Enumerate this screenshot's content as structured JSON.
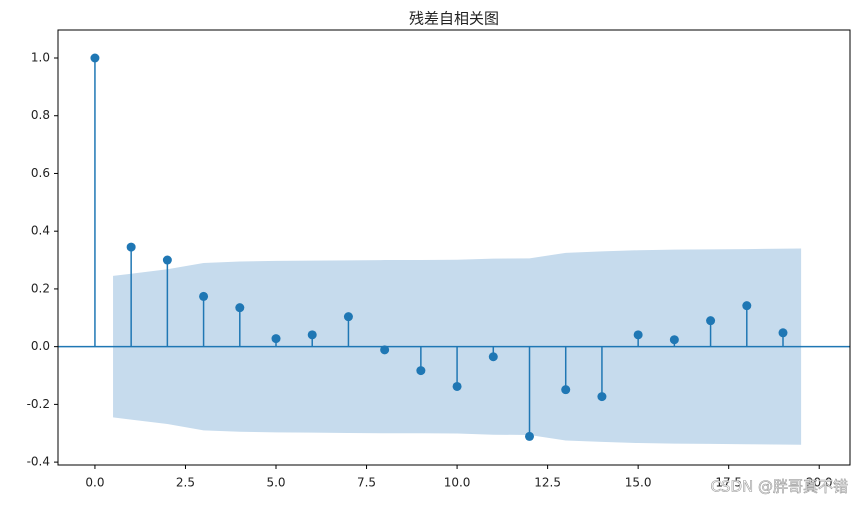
{
  "chart_data": {
    "type": "stem",
    "title": "残差自相关图",
    "x": [
      0,
      1,
      2,
      3,
      4,
      5,
      6,
      7,
      8,
      9,
      10,
      11,
      12,
      13,
      14,
      15,
      16,
      17,
      18,
      19
    ],
    "series": [
      {
        "color": "#1f77b4",
        "values": [
          1.0,
          0.345,
          0.3,
          0.174,
          0.135,
          0.028,
          0.041,
          0.104,
          -0.011,
          -0.083,
          -0.138,
          -0.035,
          -0.311,
          -0.149,
          -0.173,
          0.041,
          0.024,
          0.09,
          0.142,
          0.048
        ]
      }
    ],
    "band": {
      "color": "#c6dbed",
      "x": [
        0.5,
        2,
        3,
        4,
        5,
        6,
        7,
        8,
        9,
        10,
        11,
        12,
        13,
        14,
        15,
        16,
        17,
        18,
        19.5
      ],
      "upper": [
        0.245,
        0.268,
        0.29,
        0.295,
        0.297,
        0.298,
        0.299,
        0.3,
        0.3,
        0.301,
        0.305,
        0.306,
        0.325,
        0.33,
        0.334,
        0.336,
        0.337,
        0.338,
        0.34
      ],
      "lower": [
        -0.245,
        -0.268,
        -0.29,
        -0.295,
        -0.297,
        -0.298,
        -0.299,
        -0.3,
        -0.3,
        -0.301,
        -0.305,
        -0.306,
        -0.325,
        -0.33,
        -0.334,
        -0.336,
        -0.337,
        -0.338,
        -0.34
      ]
    },
    "xlim": [
      -1.02,
      20.85
    ],
    "ylim": [
      -0.41,
      1.097
    ],
    "xticks": [
      {
        "value": 0,
        "label": "0.0"
      },
      2.5,
      {
        "value": 5,
        "label": "5.0"
      },
      7.5,
      {
        "value": 10,
        "label": "10.0"
      },
      12.5,
      {
        "value": 15,
        "label": "15.0"
      },
      17.5,
      {
        "value": 20,
        "label": "20.0"
      }
    ],
    "yticks": [
      -0.4,
      -0.2,
      {
        "value": 0,
        "label": "0.0"
      },
      0.2,
      0.4,
      0.6,
      0.8,
      {
        "value": 1,
        "label": "1.0"
      }
    ],
    "watermark": "CSDN @胖哥真不错"
  }
}
